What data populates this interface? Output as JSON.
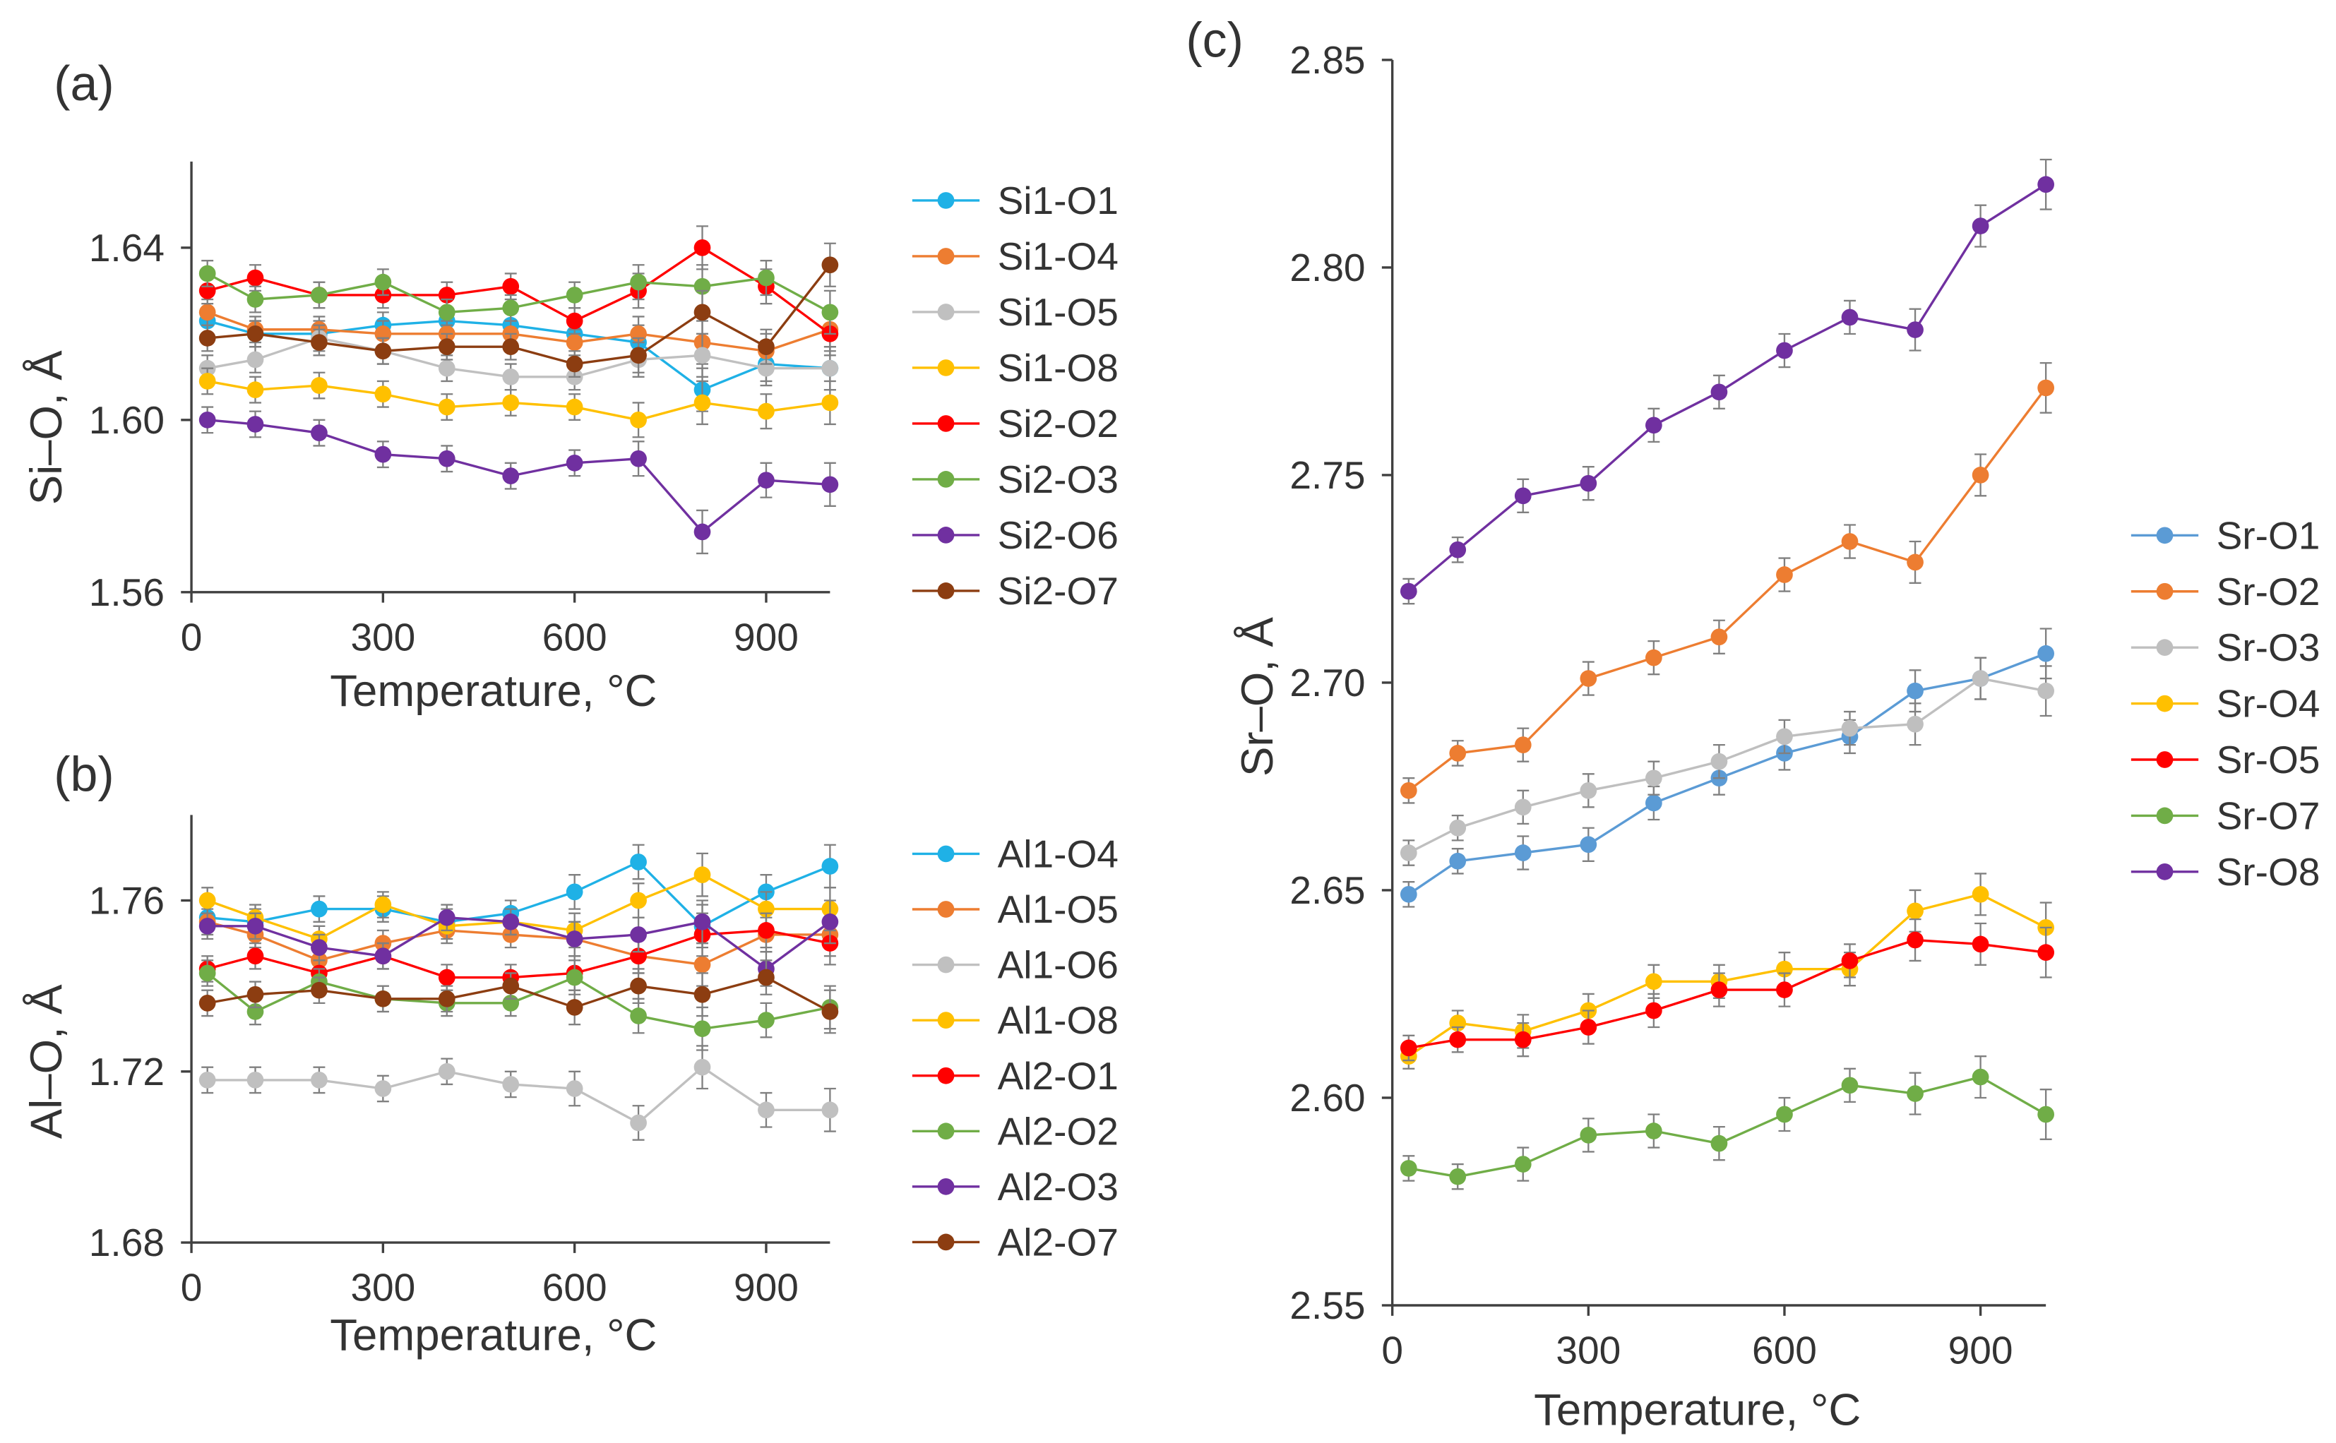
{
  "colors": {
    "axis": "#404040",
    "text": "#333333",
    "error_bar": "#808080"
  },
  "chart_data": [
    {
      "panel_label": "(a)",
      "type": "line",
      "xlabel": "Temperature, °C",
      "ylabel": "Si–O, Å",
      "xlim": [
        0,
        1000
      ],
      "ylim": [
        1.56,
        1.66
      ],
      "xticks": [
        "0",
        "300",
        "600",
        "900"
      ],
      "yticks": [
        "1.56",
        "1.60",
        "1.64"
      ],
      "grid": false,
      "legend": "right",
      "x": [
        25,
        100,
        200,
        300,
        400,
        500,
        600,
        700,
        800,
        900,
        1000
      ],
      "error_bars": [
        0.003,
        0.003,
        0.003,
        0.003,
        0.003,
        0.003,
        0.003,
        0.004,
        0.005,
        0.004,
        0.005
      ],
      "series": [
        {
          "name": "Si1-O1",
          "color": "#1fb1e6",
          "values": [
            1.623,
            1.62,
            1.62,
            1.622,
            1.623,
            1.622,
            1.62,
            1.618,
            1.607,
            1.613,
            1.612
          ]
        },
        {
          "name": "Si1-O4",
          "color": "#ed7d31",
          "values": [
            1.625,
            1.621,
            1.621,
            1.62,
            1.62,
            1.62,
            1.618,
            1.62,
            1.618,
            1.616,
            1.621
          ]
        },
        {
          "name": "Si1-O5",
          "color": "#c0c0c0",
          "values": [
            1.612,
            1.614,
            1.619,
            1.616,
            1.612,
            1.61,
            1.61,
            1.614,
            1.615,
            1.612,
            1.612
          ]
        },
        {
          "name": "Si1-O8",
          "color": "#ffc000",
          "values": [
            1.609,
            1.607,
            1.608,
            1.606,
            1.603,
            1.604,
            1.603,
            1.6,
            1.604,
            1.602,
            1.604
          ]
        },
        {
          "name": "Si2-O2",
          "color": "#ff0000",
          "values": [
            1.63,
            1.633,
            1.629,
            1.629,
            1.629,
            1.631,
            1.623,
            1.63,
            1.64,
            1.631,
            1.62
          ]
        },
        {
          "name": "Si2-O3",
          "color": "#70ad47",
          "values": [
            1.634,
            1.628,
            1.629,
            1.632,
            1.625,
            1.626,
            1.629,
            1.632,
            1.631,
            1.633,
            1.625
          ]
        },
        {
          "name": "Si2-O6",
          "color": "#7030a0",
          "values": [
            1.6,
            1.599,
            1.597,
            1.592,
            1.591,
            1.587,
            1.59,
            1.591,
            1.574,
            1.586,
            1.585
          ]
        },
        {
          "name": "Si2-O7",
          "color": "#8c3d11",
          "values": [
            1.619,
            1.62,
            1.618,
            1.616,
            1.617,
            1.617,
            1.613,
            1.615,
            1.625,
            1.617,
            1.636
          ]
        }
      ]
    },
    {
      "panel_label": "(b)",
      "type": "line",
      "xlabel": "Temperature, °C",
      "ylabel": "Al–O, Å",
      "xlim": [
        0,
        1000
      ],
      "ylim": [
        1.68,
        1.78
      ],
      "xticks": [
        "0",
        "300",
        "600",
        "900"
      ],
      "yticks": [
        "1.68",
        "1.72",
        "1.76"
      ],
      "grid": false,
      "legend": "right",
      "x": [
        25,
        100,
        200,
        300,
        400,
        500,
        600,
        700,
        800,
        900,
        1000
      ],
      "error_bars": [
        0.003,
        0.003,
        0.003,
        0.003,
        0.003,
        0.003,
        0.004,
        0.004,
        0.005,
        0.004,
        0.005
      ],
      "series": [
        {
          "name": "Al1-O4",
          "color": "#1fb1e6",
          "values": [
            1.756,
            1.755,
            1.758,
            1.758,
            1.755,
            1.757,
            1.762,
            1.769,
            1.754,
            1.762,
            1.768
          ]
        },
        {
          "name": "Al1-O5",
          "color": "#ed7d31",
          "values": [
            1.755,
            1.752,
            1.746,
            1.75,
            1.753,
            1.752,
            1.751,
            1.747,
            1.745,
            1.752,
            1.752
          ]
        },
        {
          "name": "Al1-O6",
          "color": "#c0c0c0",
          "values": [
            1.718,
            1.718,
            1.718,
            1.716,
            1.72,
            1.717,
            1.716,
            1.708,
            1.721,
            1.711,
            1.711
          ]
        },
        {
          "name": "Al1-O8",
          "color": "#ffc000",
          "values": [
            1.76,
            1.756,
            1.751,
            1.759,
            1.754,
            1.755,
            1.753,
            1.76,
            1.766,
            1.758,
            1.758
          ]
        },
        {
          "name": "Al2-O1",
          "color": "#ff0000",
          "values": [
            1.744,
            1.747,
            1.743,
            1.747,
            1.742,
            1.742,
            1.743,
            1.747,
            1.752,
            1.753,
            1.75
          ]
        },
        {
          "name": "Al2-O2",
          "color": "#70ad47",
          "values": [
            1.743,
            1.734,
            1.741,
            1.737,
            1.736,
            1.736,
            1.742,
            1.733,
            1.73,
            1.732,
            1.735
          ]
        },
        {
          "name": "Al2-O3",
          "color": "#7030a0",
          "values": [
            1.754,
            1.754,
            1.749,
            1.747,
            1.756,
            1.755,
            1.751,
            1.752,
            1.755,
            1.744,
            1.755
          ]
        },
        {
          "name": "Al2-O7",
          "color": "#8c3d11",
          "values": [
            1.736,
            1.738,
            1.739,
            1.737,
            1.737,
            1.74,
            1.735,
            1.74,
            1.738,
            1.742,
            1.734
          ]
        }
      ]
    },
    {
      "panel_label": "(c)",
      "type": "line",
      "xlabel": "Temperature, °C",
      "ylabel": "Sr–O, Å",
      "xlim": [
        0,
        1000
      ],
      "ylim": [
        2.55,
        2.85
      ],
      "xticks": [
        "0",
        "300",
        "600",
        "900"
      ],
      "yticks": [
        "2.55",
        "2.60",
        "2.65",
        "2.70",
        "2.75",
        "2.80",
        "2.85"
      ],
      "grid": false,
      "legend": "right",
      "x": [
        25,
        100,
        200,
        300,
        400,
        500,
        600,
        700,
        800,
        900,
        1000
      ],
      "error_bars": [
        0.003,
        0.003,
        0.004,
        0.004,
        0.004,
        0.004,
        0.004,
        0.004,
        0.005,
        0.005,
        0.006
      ],
      "series": [
        {
          "name": "Sr-O1",
          "color": "#5b9bd5",
          "values": [
            2.649,
            2.657,
            2.659,
            2.661,
            2.671,
            2.677,
            2.683,
            2.687,
            2.698,
            2.701,
            2.707
          ]
        },
        {
          "name": "Sr-O2",
          "color": "#ed7d31",
          "values": [
            2.674,
            2.683,
            2.685,
            2.701,
            2.706,
            2.711,
            2.726,
            2.734,
            2.729,
            2.75,
            2.771
          ]
        },
        {
          "name": "Sr-O3",
          "color": "#bfbfbf",
          "values": [
            2.659,
            2.665,
            2.67,
            2.674,
            2.677,
            2.681,
            2.687,
            2.689,
            2.69,
            2.701,
            2.698
          ]
        },
        {
          "name": "Sr-O4",
          "color": "#ffc000",
          "values": [
            2.61,
            2.618,
            2.616,
            2.621,
            2.628,
            2.628,
            2.631,
            2.631,
            2.645,
            2.649,
            2.641
          ]
        },
        {
          "name": "Sr-O5",
          "color": "#ff0000",
          "values": [
            2.612,
            2.614,
            2.614,
            2.617,
            2.621,
            2.626,
            2.626,
            2.633,
            2.638,
            2.637,
            2.635
          ]
        },
        {
          "name": "Sr-O7",
          "color": "#70ad47",
          "values": [
            2.583,
            2.581,
            2.584,
            2.591,
            2.592,
            2.589,
            2.596,
            2.603,
            2.601,
            2.605,
            2.596
          ]
        },
        {
          "name": "Sr-O8",
          "color": "#7030a0",
          "values": [
            2.722,
            2.732,
            2.745,
            2.748,
            2.762,
            2.77,
            2.78,
            2.788,
            2.785,
            2.81,
            2.82
          ]
        }
      ]
    }
  ]
}
